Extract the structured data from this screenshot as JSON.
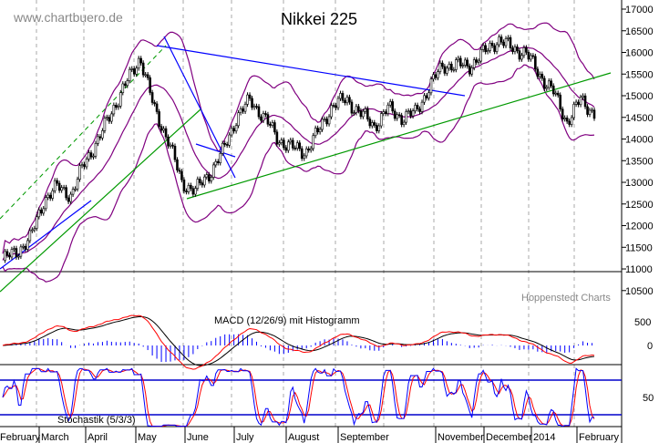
{
  "chart_data": {
    "type": "candlestick",
    "title": "Nikkei 225",
    "watermark": "www.chartbuero.de",
    "credit": "Hoppenstedt Charts",
    "price_axis": {
      "ylim": [
        10500,
        17000
      ],
      "ticks": [
        "17000",
        "16500",
        "16000",
        "15500",
        "15000",
        "14500",
        "14000",
        "13500",
        "13000",
        "12500",
        "12000",
        "11500",
        "11000",
        "10500"
      ]
    },
    "x_labels": [
      "February",
      "March",
      "April",
      "May",
      "June",
      "July",
      "August",
      "September",
      "November",
      "December",
      "2014",
      "February"
    ],
    "close_approx": [
      11200,
      11400,
      11700,
      12600,
      12900,
      12700,
      13500,
      14000,
      14700,
      15300,
      15900,
      14700,
      14000,
      13000,
      12800,
      13200,
      13700,
      14500,
      14900,
      14500,
      14000,
      13800,
      13700,
      14200,
      14800,
      14900,
      14600,
      14300,
      14700,
      14500,
      14600,
      15200,
      15700,
      15700,
      15700,
      16000,
      16300,
      16100,
      16000,
      15500,
      15100,
      14400,
      14900,
      14600
    ],
    "overlays": [
      "Bollinger bands",
      "trendlines"
    ],
    "macd": {
      "label": "MACD (12/26/9) mit Histogramm",
      "ticks": [
        "500",
        "0"
      ]
    },
    "stochastic": {
      "label": "Stochastik  (5/3/3)",
      "ticks": [
        "50"
      ],
      "levels": [
        20,
        80
      ]
    },
    "grid": "vertical dashed",
    "colors": {
      "candles": "#000000",
      "bands": "#800080",
      "trend_blue": "#0000ff",
      "trend_green": "#009900",
      "signal": "#ff0000",
      "macd": "#000000",
      "stoch_k": "#0000ff",
      "stoch_d": "#ff0000",
      "histogram": "#0000ff"
    }
  }
}
